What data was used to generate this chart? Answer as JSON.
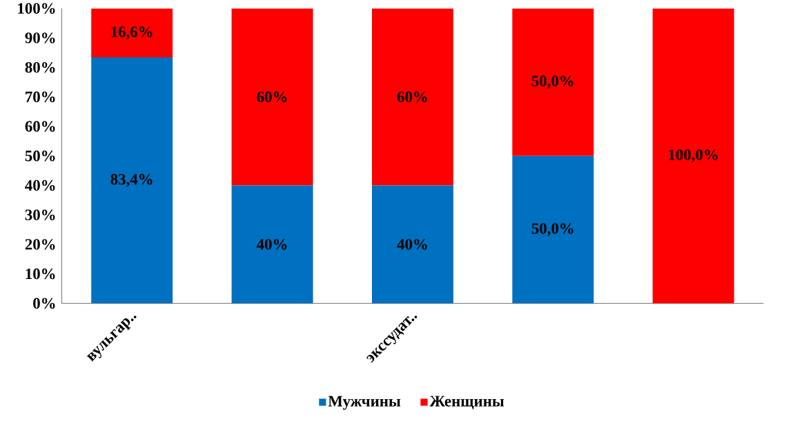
{
  "chart_data": {
    "type": "bar",
    "stacked": true,
    "categories": [
      "вульгар..",
      null,
      "экссудат..",
      null,
      null
    ],
    "series": [
      {
        "name": "Мужчины",
        "color": "#0070c0",
        "values": [
          83.4,
          40,
          40,
          50,
          0
        ],
        "value_labels": [
          "83,4%",
          "40%",
          "40%",
          "50,0%",
          null
        ]
      },
      {
        "name": "Женщины",
        "color": "#ff0000",
        "values": [
          16.6,
          60,
          60,
          50,
          100
        ],
        "value_labels": [
          "16,6%",
          "60%",
          "60%",
          "50,0%",
          "100,0%"
        ]
      }
    ],
    "ylim": [
      0,
      100
    ],
    "yticks": [
      {
        "value": 0,
        "label": "0%"
      },
      {
        "value": 10,
        "label": "10%"
      },
      {
        "value": 20,
        "label": "20%"
      },
      {
        "value": 30,
        "label": "30%"
      },
      {
        "value": 40,
        "label": "40%"
      },
      {
        "value": 50,
        "label": "50%"
      },
      {
        "value": 60,
        "label": "60%"
      },
      {
        "value": 70,
        "label": "70%"
      },
      {
        "value": 80,
        "label": "80%"
      },
      {
        "value": 90,
        "label": "90%"
      },
      {
        "value": 100,
        "label": "100%"
      }
    ],
    "grid": false,
    "legend": "bottom"
  }
}
